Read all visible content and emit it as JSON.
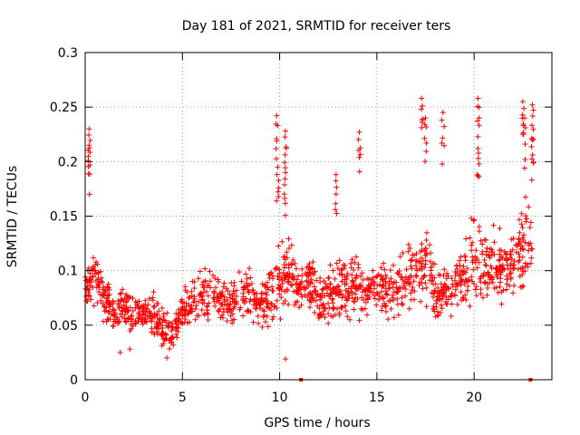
{
  "chart_data": {
    "type": "scatter",
    "title": "Day 181 of 2021, SRMTID for receiver ters",
    "xlabel": "GPS time / hours",
    "ylabel": "SRMTID / TECUs",
    "xlim": [
      0,
      24
    ],
    "ylim": [
      0,
      0.3
    ],
    "xticks": [
      0,
      5,
      10,
      15,
      20
    ],
    "yticks": [
      0,
      0.05,
      0.1,
      0.15,
      0.2,
      0.25,
      0.3
    ],
    "xtick_labels": [
      "0",
      "5",
      "10",
      "15",
      "20"
    ],
    "ytick_labels": [
      "0",
      "0.05",
      "0.1",
      "0.15",
      "0.2",
      "0.25",
      "0.3"
    ],
    "grid": true,
    "marker": "+",
    "color": "#ff0000",
    "series": [
      {
        "name": "SRMTID",
        "envelope_hours": [
          0,
          0.5,
          1,
          1.5,
          2,
          2.5,
          3,
          3.5,
          4,
          4.5,
          5,
          5.5,
          6,
          6.5,
          7,
          7.5,
          8,
          8.5,
          9,
          9.5,
          10,
          10.5,
          11,
          11.5,
          12,
          12.5,
          13,
          13.5,
          14,
          14.5,
          15,
          15.5,
          16,
          16.5,
          17,
          17.5,
          18,
          18.5,
          19,
          19.5,
          20,
          20.5,
          21,
          21.5,
          22,
          22.5,
          23
        ],
        "envelope_median": [
          0.082,
          0.1,
          0.075,
          0.06,
          0.065,
          0.062,
          0.06,
          0.058,
          0.05,
          0.042,
          0.065,
          0.07,
          0.078,
          0.075,
          0.072,
          0.07,
          0.078,
          0.08,
          0.07,
          0.075,
          0.09,
          0.1,
          0.08,
          0.09,
          0.07,
          0.075,
          0.085,
          0.08,
          0.09,
          0.08,
          0.085,
          0.082,
          0.085,
          0.09,
          0.1,
          0.11,
          0.085,
          0.08,
          0.09,
          0.1,
          0.11,
          0.1,
          0.105,
          0.1,
          0.11,
          0.12,
          0.12
        ],
        "envelope_spread": [
          0.025,
          0.03,
          0.025,
          0.02,
          0.02,
          0.02,
          0.02,
          0.022,
          0.02,
          0.015,
          0.02,
          0.03,
          0.03,
          0.025,
          0.025,
          0.025,
          0.03,
          0.03,
          0.025,
          0.035,
          0.04,
          0.03,
          0.025,
          0.03,
          0.025,
          0.03,
          0.035,
          0.03,
          0.03,
          0.025,
          0.025,
          0.03,
          0.03,
          0.035,
          0.045,
          0.045,
          0.035,
          0.03,
          0.035,
          0.035,
          0.045,
          0.035,
          0.04,
          0.04,
          0.045,
          0.05,
          0.04
        ],
        "peaks": [
          {
            "x": 0.2,
            "y": 0.23
          },
          {
            "x": 0.2,
            "y": 0.215
          },
          {
            "x": 9.85,
            "y": 0.242
          },
          {
            "x": 9.9,
            "y": 0.195
          },
          {
            "x": 10.3,
            "y": 0.228
          },
          {
            "x": 10.3,
            "y": 0.19
          },
          {
            "x": 12.9,
            "y": 0.188
          },
          {
            "x": 14.1,
            "y": 0.227
          },
          {
            "x": 17.3,
            "y": 0.258
          },
          {
            "x": 17.5,
            "y": 0.24
          },
          {
            "x": 18.4,
            "y": 0.245
          },
          {
            "x": 20.2,
            "y": 0.258
          },
          {
            "x": 20.2,
            "y": 0.212
          },
          {
            "x": 22.5,
            "y": 0.255
          },
          {
            "x": 22.6,
            "y": 0.24
          },
          {
            "x": 23.0,
            "y": 0.252
          },
          {
            "x": 23.0,
            "y": 0.22
          }
        ],
        "lows": [
          {
            "x": 4.2,
            "y": 0.02
          },
          {
            "x": 10.3,
            "y": 0.019
          },
          {
            "x": 1.8,
            "y": 0.025
          },
          {
            "x": 2.3,
            "y": 0.028
          }
        ]
      },
      {
        "name": "gaps",
        "marker": "square",
        "points": [
          {
            "x": 11.1,
            "y": 0
          },
          {
            "x": 22.9,
            "y": 0
          }
        ]
      }
    ]
  }
}
